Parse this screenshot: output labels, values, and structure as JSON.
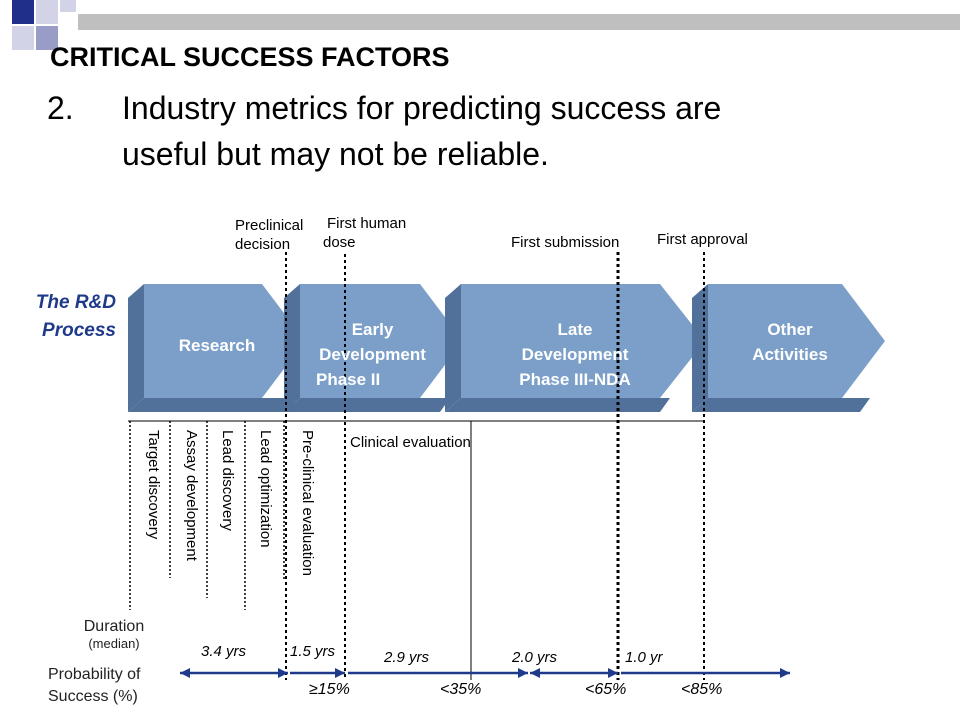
{
  "slide": {
    "title": "CRITICAL SUCCESS FACTORS",
    "point_number": "2.",
    "headline_line1": "Industry metrics for predicting success are",
    "headline_line2": "useful but may not be reliable."
  },
  "diagram": {
    "process_label_line1": "The R&D",
    "process_label_line2": "Process",
    "milestones": {
      "preclinical_line1": "Preclinical",
      "preclinical_line2": "decision",
      "first_human_line1": "First human",
      "first_human_line2": "dose",
      "first_submission": "First submission",
      "first_approval": "First approval"
    },
    "phases": {
      "research": "Research",
      "early_line1": "Early",
      "early_line2": "Development",
      "early_line3": "Phase II",
      "late_line1": "Late",
      "late_line2": "Development",
      "late_line3": "Phase III-NDA",
      "other_line1": "Other",
      "other_line2": "Activities"
    },
    "activities": {
      "target_discovery": "Target discovery",
      "assay_development": "Assay development",
      "lead_discovery": "Lead discovery",
      "lead_optimization": "Lead optimization",
      "preclinical_evaluation": "Pre-clinical evaluation",
      "clinical_evaluation": "Clinical evaluation"
    },
    "duration_label": "Duration",
    "duration_sub": "(median)",
    "probability_label_line1": "Probability of",
    "probability_label_line2": "Success (%)",
    "durations": {
      "research": "3.4 yrs",
      "preclinical": "1.5 yrs",
      "phase2": "2.9 yrs",
      "phase3": "2.0 yrs",
      "approval": "1.0 yr"
    },
    "probabilities": {
      "p1": "≥15%",
      "p2": "<35%",
      "p3": "<65%",
      "p4": "<85%"
    },
    "colors": {
      "phase_fill": "#7b9fc9",
      "phase_shadow": "#51719b",
      "arrow_line": "#1f3a8a",
      "title_text": "#1f3a8a"
    }
  }
}
